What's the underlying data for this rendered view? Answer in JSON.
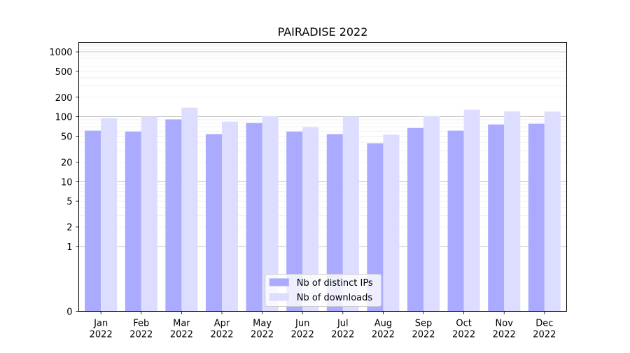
{
  "chart_data": {
    "type": "bar",
    "title": "PAIRADISE 2022",
    "xlabel": "",
    "ylabel": "",
    "scale": "symlog",
    "ylim": [
      0,
      1400
    ],
    "yticks": [
      0,
      1,
      2,
      5,
      10,
      20,
      50,
      100,
      200,
      500,
      1000
    ],
    "ytick_labels": [
      "0",
      "1",
      "2",
      "5",
      "10",
      "20",
      "50",
      "100",
      "200",
      "500",
      "1000"
    ],
    "categories": [
      [
        "Jan",
        "2022"
      ],
      [
        "Feb",
        "2022"
      ],
      [
        "Mar",
        "2022"
      ],
      [
        "Apr",
        "2022"
      ],
      [
        "May",
        "2022"
      ],
      [
        "Jun",
        "2022"
      ],
      [
        "Jul",
        "2022"
      ],
      [
        "Aug",
        "2022"
      ],
      [
        "Sep",
        "2022"
      ],
      [
        "Oct",
        "2022"
      ],
      [
        "Nov",
        "2022"
      ],
      [
        "Dec",
        "2022"
      ]
    ],
    "series": [
      {
        "name": "Nb of distinct IPs",
        "color": "#aaaaff",
        "values": [
          61,
          59,
          91,
          54,
          80,
          59,
          54,
          39,
          67,
          61,
          76,
          78
        ]
      },
      {
        "name": "Nb of downloads",
        "color": "#ddddff",
        "values": [
          95,
          100,
          138,
          84,
          102,
          69,
          100,
          53,
          102,
          128,
          121,
          120
        ]
      }
    ],
    "grid": true,
    "legend_position": "lower-center"
  }
}
